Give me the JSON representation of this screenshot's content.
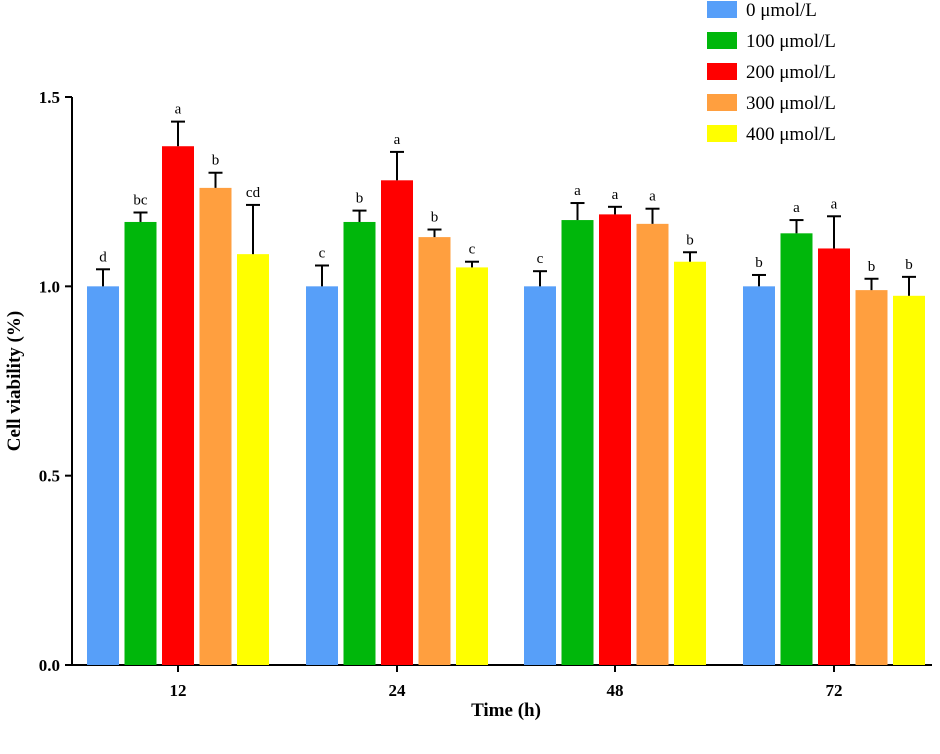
{
  "chart_data": {
    "type": "bar",
    "xlabel": "Time (h)",
    "ylabel": "Cell viability (%)",
    "ylim": [
      0,
      1.5
    ],
    "yticks": [
      "0.0",
      "0.5",
      "1.0",
      "1.5"
    ],
    "categories": [
      "12",
      "24",
      "48",
      "72"
    ],
    "legend_position": "top-right",
    "series": [
      {
        "name": "0 μmol/L",
        "color": "#579ff9",
        "values": [
          1.0,
          1.0,
          1.0,
          1.0
        ],
        "errors": [
          0.045,
          0.055,
          0.04,
          0.03
        ],
        "labels": [
          "d",
          "c",
          "c",
          "b"
        ]
      },
      {
        "name": "100 μmol/L",
        "color": "#00b70b",
        "values": [
          1.17,
          1.17,
          1.175,
          1.14
        ],
        "errors": [
          0.025,
          0.03,
          0.045,
          0.035
        ],
        "labels": [
          "bc",
          "b",
          "a",
          "a"
        ]
      },
      {
        "name": "200 μmol/L",
        "color": "#ff0000",
        "values": [
          1.37,
          1.28,
          1.19,
          1.1
        ],
        "errors": [
          0.065,
          0.075,
          0.02,
          0.085
        ],
        "labels": [
          "a",
          "a",
          "a",
          "a"
        ]
      },
      {
        "name": "300 μmol/L",
        "color": "#ff9f3f",
        "values": [
          1.26,
          1.13,
          1.165,
          0.99
        ],
        "errors": [
          0.04,
          0.02,
          0.04,
          0.03
        ],
        "labels": [
          "b",
          "b",
          "a",
          "b"
        ]
      },
      {
        "name": "400 μmol/L",
        "color": "#ffff00",
        "values": [
          1.085,
          1.05,
          1.065,
          0.975
        ],
        "errors": [
          0.13,
          0.015,
          0.025,
          0.05
        ],
        "labels": [
          "cd",
          "c",
          "b",
          "b"
        ]
      }
    ]
  }
}
